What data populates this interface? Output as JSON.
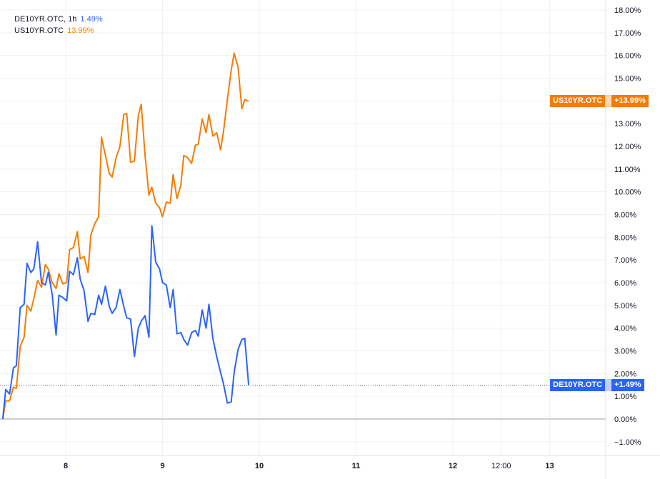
{
  "legend": {
    "de_label": "DE10YR.OTC, 1h",
    "de_value": "1.49%",
    "us_label": "US10YR.OTC",
    "us_value": "13.99%"
  },
  "badges": {
    "us_name": "US10YR.OTC",
    "us_value": "+13.99%",
    "de_name": "DE10YR.OTC",
    "de_value": "+1.49%"
  },
  "chart_data": {
    "type": "line",
    "title": "",
    "xlabel": "",
    "ylabel": "",
    "ylim": [
      -1.5,
      18.2
    ],
    "y_ticks": [
      "−1.00%",
      "0.00%",
      "1.00%",
      "2.00%",
      "3.00%",
      "4.00%",
      "5.00%",
      "6.00%",
      "7.00%",
      "8.00%",
      "9.00%",
      "10.00%",
      "11.00%",
      "12.00%",
      "13.00%",
      "14.00%",
      "15.00%",
      "16.00%",
      "17.00%",
      "18.00%"
    ],
    "y_tick_values": [
      -1,
      0,
      1,
      2,
      3,
      4,
      5,
      6,
      7,
      8,
      9,
      10,
      11,
      12,
      13,
      14,
      15,
      16,
      17,
      18
    ],
    "x_ticks": [
      {
        "label": "8",
        "t": 8.0
      },
      {
        "label": "9",
        "t": 9.0
      },
      {
        "label": "10",
        "t": 10.0
      },
      {
        "label": "11",
        "t": 11.0
      },
      {
        "label": "12",
        "t": 12.0
      },
      {
        "label": "12:00",
        "t": 12.5
      },
      {
        "label": "13",
        "t": 13.0
      }
    ],
    "grid": true,
    "colors": {
      "de": "#2962ff",
      "us": "#f57c00",
      "zero_line": "#999999",
      "grid": "#eef0f3"
    },
    "series": [
      {
        "name": "US10YR.OTC",
        "color": "#f57c00",
        "points": [
          [
            7.35,
            0.0
          ],
          [
            7.38,
            0.8
          ],
          [
            7.42,
            0.8
          ],
          [
            7.46,
            1.4
          ],
          [
            7.49,
            1.35
          ],
          [
            7.53,
            3.2
          ],
          [
            7.57,
            3.6
          ],
          [
            7.6,
            5.0
          ],
          [
            7.64,
            4.75
          ],
          [
            7.67,
            5.3
          ],
          [
            7.71,
            6.1
          ],
          [
            7.75,
            5.8
          ],
          [
            7.79,
            6.8
          ],
          [
            7.82,
            6.6
          ],
          [
            7.86,
            6.0
          ],
          [
            7.9,
            5.75
          ],
          [
            7.93,
            6.4
          ],
          [
            7.97,
            5.95
          ],
          [
            8.01,
            6.0
          ],
          [
            8.04,
            7.45
          ],
          [
            8.08,
            7.55
          ],
          [
            8.12,
            8.25
          ],
          [
            8.15,
            7.05
          ],
          [
            8.19,
            7.15
          ],
          [
            8.23,
            6.45
          ],
          [
            8.26,
            8.1
          ],
          [
            8.3,
            8.6
          ],
          [
            8.34,
            8.9
          ],
          [
            8.37,
            12.4
          ],
          [
            8.41,
            11.6
          ],
          [
            8.45,
            10.8
          ],
          [
            8.48,
            10.65
          ],
          [
            8.52,
            11.5
          ],
          [
            8.56,
            12.0
          ],
          [
            8.6,
            13.4
          ],
          [
            8.63,
            13.45
          ],
          [
            8.67,
            11.3
          ],
          [
            8.71,
            11.35
          ],
          [
            8.75,
            13.35
          ],
          [
            8.78,
            13.85
          ],
          [
            8.82,
            11.6
          ],
          [
            8.86,
            9.85
          ],
          [
            8.89,
            10.2
          ],
          [
            8.93,
            9.5
          ],
          [
            8.97,
            9.3
          ],
          [
            9.0,
            8.9
          ],
          [
            9.04,
            9.55
          ],
          [
            9.08,
            9.5
          ],
          [
            9.11,
            10.75
          ],
          [
            9.15,
            9.7
          ],
          [
            9.19,
            10.3
          ],
          [
            9.22,
            11.6
          ],
          [
            9.26,
            11.5
          ],
          [
            9.3,
            11.25
          ],
          [
            9.34,
            12.05
          ],
          [
            9.37,
            12.1
          ],
          [
            9.41,
            13.2
          ],
          [
            9.45,
            12.6
          ],
          [
            9.48,
            13.4
          ],
          [
            9.52,
            12.45
          ],
          [
            9.56,
            12.6
          ],
          [
            9.6,
            11.85
          ],
          [
            9.63,
            12.65
          ],
          [
            9.67,
            14.05
          ],
          [
            9.71,
            15.35
          ],
          [
            9.74,
            16.1
          ],
          [
            9.78,
            15.5
          ],
          [
            9.82,
            13.65
          ],
          [
            9.85,
            14.05
          ],
          [
            9.89,
            13.99
          ]
        ]
      },
      {
        "name": "DE10YR.OTC",
        "color": "#2962ff",
        "points": [
          [
            7.35,
            0.0
          ],
          [
            7.38,
            1.3
          ],
          [
            7.42,
            1.1
          ],
          [
            7.46,
            2.25
          ],
          [
            7.49,
            2.35
          ],
          [
            7.53,
            4.9
          ],
          [
            7.57,
            5.05
          ],
          [
            7.6,
            6.85
          ],
          [
            7.64,
            6.45
          ],
          [
            7.67,
            6.6
          ],
          [
            7.71,
            7.8
          ],
          [
            7.75,
            6.0
          ],
          [
            7.79,
            5.9
          ],
          [
            7.82,
            6.45
          ],
          [
            7.86,
            5.5
          ],
          [
            7.9,
            3.7
          ],
          [
            7.93,
            5.45
          ],
          [
            7.97,
            5.35
          ],
          [
            8.01,
            5.2
          ],
          [
            8.04,
            6.5
          ],
          [
            8.08,
            6.35
          ],
          [
            8.12,
            7.1
          ],
          [
            8.15,
            6.15
          ],
          [
            8.19,
            5.65
          ],
          [
            8.23,
            4.3
          ],
          [
            8.26,
            4.65
          ],
          [
            8.3,
            4.6
          ],
          [
            8.34,
            5.45
          ],
          [
            8.37,
            5.05
          ],
          [
            8.41,
            5.85
          ],
          [
            8.45,
            4.95
          ],
          [
            8.48,
            4.65
          ],
          [
            8.52,
            4.9
          ],
          [
            8.56,
            5.7
          ],
          [
            8.6,
            4.95
          ],
          [
            8.63,
            4.45
          ],
          [
            8.67,
            4.4
          ],
          [
            8.71,
            2.75
          ],
          [
            8.75,
            4.0
          ],
          [
            8.78,
            4.3
          ],
          [
            8.82,
            4.55
          ],
          [
            8.86,
            3.6
          ],
          [
            8.89,
            8.5
          ],
          [
            8.93,
            6.9
          ],
          [
            8.97,
            6.6
          ],
          [
            9.0,
            6.0
          ],
          [
            9.04,
            5.9
          ],
          [
            9.08,
            4.9
          ],
          [
            9.11,
            5.7
          ],
          [
            9.15,
            3.75
          ],
          [
            9.19,
            3.8
          ],
          [
            9.22,
            3.5
          ],
          [
            9.26,
            3.25
          ],
          [
            9.3,
            3.8
          ],
          [
            9.34,
            3.9
          ],
          [
            9.37,
            3.65
          ],
          [
            9.41,
            4.8
          ],
          [
            9.45,
            4.0
          ],
          [
            9.48,
            5.05
          ],
          [
            9.52,
            3.55
          ],
          [
            9.56,
            2.75
          ],
          [
            9.6,
            2.05
          ],
          [
            9.63,
            1.55
          ],
          [
            9.67,
            0.7
          ],
          [
            9.71,
            0.75
          ],
          [
            9.74,
            2.05
          ],
          [
            9.78,
            3.05
          ],
          [
            9.82,
            3.5
          ],
          [
            9.85,
            3.55
          ],
          [
            9.89,
            1.49
          ]
        ]
      }
    ]
  }
}
